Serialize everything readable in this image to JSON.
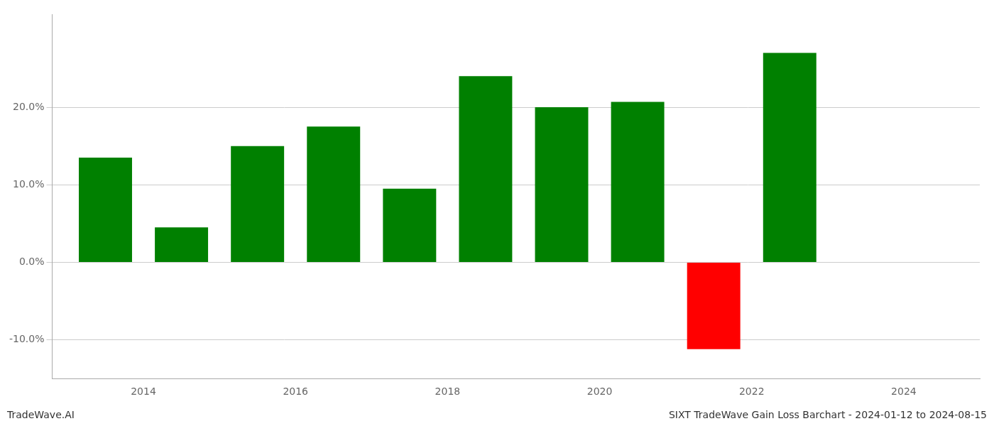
{
  "chart_data": {
    "type": "bar",
    "x": [
      2013.5,
      2014.5,
      2015.5,
      2016.5,
      2017.5,
      2018.5,
      2019.5,
      2020.5,
      2021.5,
      2022.5
    ],
    "values": [
      0.135,
      0.045,
      0.15,
      0.175,
      0.095,
      0.24,
      0.2,
      0.207,
      -0.112,
      0.27
    ],
    "colors": [
      "#008000",
      "#008000",
      "#008000",
      "#008000",
      "#008000",
      "#008000",
      "#008000",
      "#008000",
      "#ff0000",
      "#008000"
    ],
    "xlim": [
      2012.8,
      2025.0
    ],
    "xticks": [
      2014,
      2016,
      2018,
      2020,
      2022,
      2024
    ],
    "ylim": [
      -0.15,
      0.32
    ],
    "yticks": [
      {
        "value": -0.1,
        "label": "-10.0%"
      },
      {
        "value": 0.0,
        "label": "0.0%"
      },
      {
        "value": 0.1,
        "label": "10.0%"
      },
      {
        "value": 0.2,
        "label": "20.0%"
      }
    ],
    "grid": true,
    "annotations": [
      "TradeWave.AI",
      "SIXT TradeWave Gain Loss Barchart - 2024-01-12 to 2024-08-15"
    ]
  }
}
